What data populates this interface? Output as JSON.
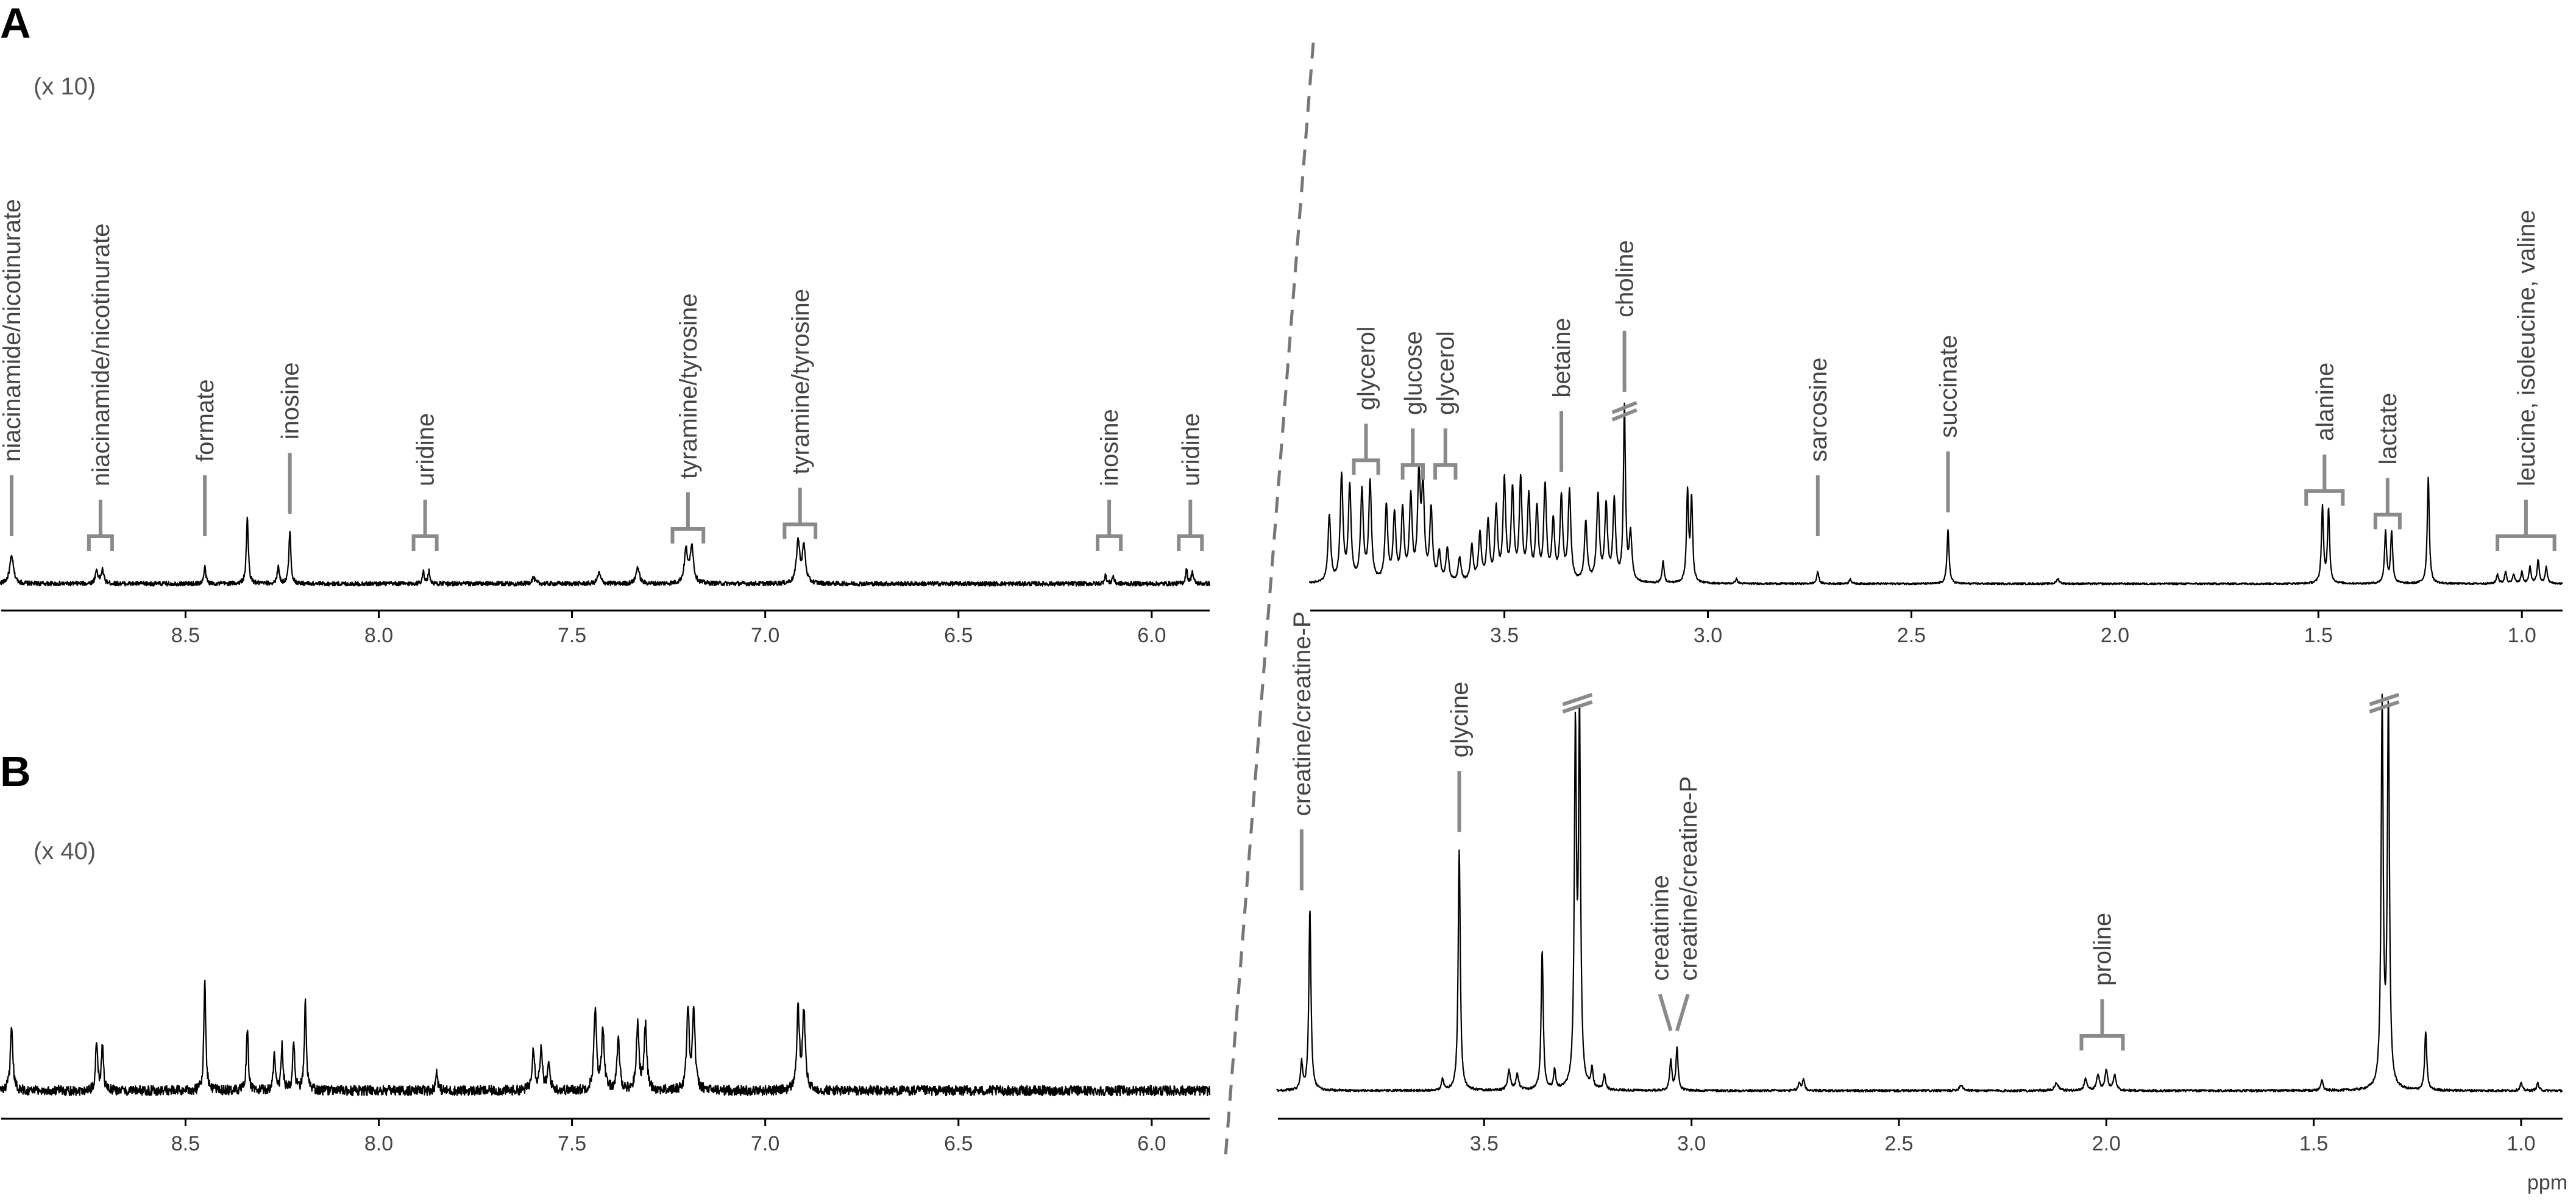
{
  "figure": {
    "unit_label": "ppm"
  },
  "chart_data": [
    {
      "id": "A-aromatic",
      "panel": "A",
      "type": "line",
      "scale_label": "(x 10)",
      "xlabel": "",
      "ylabel": "",
      "xlim": [
        8.98,
        5.85
      ],
      "ylim": [
        0,
        1
      ],
      "x_reversed": true,
      "grid": false,
      "tick_labels": [
        {
          "x": 8.5,
          "label": "8.5"
        },
        {
          "x": 8.0,
          "label": "8.0"
        },
        {
          "x": 7.5,
          "label": "7.5"
        },
        {
          "x": 7.0,
          "label": "7.0"
        },
        {
          "x": 6.5,
          "label": "6.5"
        },
        {
          "x": 6.0,
          "label": "6.0"
        }
      ],
      "baseline_noise": 0.015,
      "peaks": [
        {
          "x": 8.95,
          "h": 0.18,
          "w": 0.006
        },
        {
          "x": 8.715,
          "h": 0.09,
          "w": 0.004
        },
        {
          "x": 8.73,
          "h": 0.09,
          "w": 0.004
        },
        {
          "x": 8.45,
          "h": 0.11,
          "w": 0.003
        },
        {
          "x": 8.34,
          "h": 0.44,
          "w": 0.003
        },
        {
          "x": 8.26,
          "h": 0.12,
          "w": 0.003
        },
        {
          "x": 8.23,
          "h": 0.35,
          "w": 0.003
        },
        {
          "x": 7.885,
          "h": 0.08,
          "w": 0.003
        },
        {
          "x": 7.87,
          "h": 0.08,
          "w": 0.003
        },
        {
          "x": 7.6,
          "h": 0.04,
          "w": 0.005
        },
        {
          "x": 7.43,
          "h": 0.07,
          "w": 0.005
        },
        {
          "x": 7.33,
          "h": 0.11,
          "w": 0.005
        },
        {
          "x": 7.205,
          "h": 0.22,
          "w": 0.005
        },
        {
          "x": 7.19,
          "h": 0.25,
          "w": 0.005
        },
        {
          "x": 6.915,
          "h": 0.28,
          "w": 0.005
        },
        {
          "x": 6.9,
          "h": 0.24,
          "w": 0.005
        },
        {
          "x": 6.12,
          "h": 0.06,
          "w": 0.003
        },
        {
          "x": 6.1,
          "h": 0.05,
          "w": 0.003
        },
        {
          "x": 5.91,
          "h": 0.09,
          "w": 0.003
        },
        {
          "x": 5.895,
          "h": 0.08,
          "w": 0.003
        }
      ],
      "annotations": [
        {
          "label": "niacinamide/nicotinurate",
          "x": 8.95,
          "kind": "tick"
        },
        {
          "label": "niacinamide/nicotinurate",
          "x": 8.72,
          "kind": "bracket",
          "x1": 8.75,
          "x2": 8.69
        },
        {
          "label": "formate",
          "x": 8.45,
          "kind": "line"
        },
        {
          "label": "inosine",
          "x": 8.23,
          "kind": "line"
        },
        {
          "label": "uridine",
          "x": 7.88,
          "kind": "bracket",
          "x1": 7.91,
          "x2": 7.85
        },
        {
          "label": "tyramine/tyrosine",
          "x": 7.2,
          "kind": "bracket",
          "x1": 7.24,
          "x2": 7.16
        },
        {
          "label": "tyramine/tyrosine",
          "x": 6.91,
          "kind": "bracket",
          "x1": 6.95,
          "x2": 6.87
        },
        {
          "label": "inosine",
          "x": 6.11,
          "kind": "bracket",
          "x1": 6.14,
          "x2": 6.08
        },
        {
          "label": "uridine",
          "x": 5.9,
          "kind": "bracket",
          "x1": 5.93,
          "x2": 5.87
        }
      ]
    },
    {
      "id": "A-aliphatic",
      "panel": "A",
      "type": "line",
      "xlabel": "",
      "ylabel": "",
      "xlim": [
        3.98,
        0.9
      ],
      "ylim": [
        0,
        1
      ],
      "x_reversed": true,
      "grid": false,
      "tick_labels": [
        {
          "x": 3.5,
          "label": "3.5"
        },
        {
          "x": 3.0,
          "label": "3.0"
        },
        {
          "x": 2.5,
          "label": "2.5"
        },
        {
          "x": 2.0,
          "label": "2.0"
        },
        {
          "x": 1.5,
          "label": "1.5"
        },
        {
          "x": 1.0,
          "label": "1.0"
        }
      ],
      "baseline_noise": 0.004,
      "peaks": [
        {
          "x": 3.93,
          "h": 0.28,
          "w": 0.004
        },
        {
          "x": 3.9,
          "h": 0.45,
          "w": 0.004
        },
        {
          "x": 3.88,
          "h": 0.4,
          "w": 0.004
        },
        {
          "x": 3.85,
          "h": 0.38,
          "w": 0.004
        },
        {
          "x": 3.83,
          "h": 0.42,
          "w": 0.004
        },
        {
          "x": 3.79,
          "h": 0.32,
          "w": 0.004
        },
        {
          "x": 3.77,
          "h": 0.28,
          "w": 0.004
        },
        {
          "x": 3.75,
          "h": 0.3,
          "w": 0.004
        },
        {
          "x": 3.73,
          "h": 0.35,
          "w": 0.004
        },
        {
          "x": 3.71,
          "h": 0.43,
          "w": 0.004
        },
        {
          "x": 3.7,
          "h": 0.38,
          "w": 0.004
        },
        {
          "x": 3.68,
          "h": 0.3,
          "w": 0.004
        },
        {
          "x": 3.66,
          "h": 0.12,
          "w": 0.004
        },
        {
          "x": 3.64,
          "h": 0.14,
          "w": 0.004
        },
        {
          "x": 3.61,
          "h": 0.1,
          "w": 0.004
        },
        {
          "x": 3.58,
          "h": 0.15,
          "w": 0.004
        },
        {
          "x": 3.56,
          "h": 0.2,
          "w": 0.004
        },
        {
          "x": 3.54,
          "h": 0.25,
          "w": 0.004
        },
        {
          "x": 3.52,
          "h": 0.3,
          "w": 0.004
        },
        {
          "x": 3.5,
          "h": 0.42,
          "w": 0.004
        },
        {
          "x": 3.48,
          "h": 0.38,
          "w": 0.004
        },
        {
          "x": 3.46,
          "h": 0.42,
          "w": 0.004
        },
        {
          "x": 3.44,
          "h": 0.35,
          "w": 0.004
        },
        {
          "x": 3.42,
          "h": 0.3,
          "w": 0.004
        },
        {
          "x": 3.4,
          "h": 0.4,
          "w": 0.004
        },
        {
          "x": 3.38,
          "h": 0.25,
          "w": 0.004
        },
        {
          "x": 3.36,
          "h": 0.35,
          "w": 0.004
        },
        {
          "x": 3.34,
          "h": 0.38,
          "w": 0.004
        },
        {
          "x": 3.3,
          "h": 0.25,
          "w": 0.004
        },
        {
          "x": 3.27,
          "h": 0.36,
          "w": 0.004
        },
        {
          "x": 3.25,
          "h": 0.32,
          "w": 0.004
        },
        {
          "x": 3.23,
          "h": 0.34,
          "w": 0.004
        },
        {
          "x": 3.205,
          "h": 0.74,
          "w": 0.003
        },
        {
          "x": 3.19,
          "h": 0.2,
          "w": 0.004
        },
        {
          "x": 3.11,
          "h": 0.09,
          "w": 0.003
        },
        {
          "x": 3.05,
          "h": 0.38,
          "w": 0.003
        },
        {
          "x": 3.04,
          "h": 0.35,
          "w": 0.003
        },
        {
          "x": 2.93,
          "h": 0.02,
          "w": 0.003
        },
        {
          "x": 2.73,
          "h": 0.05,
          "w": 0.003
        },
        {
          "x": 2.65,
          "h": 0.02,
          "w": 0.003
        },
        {
          "x": 2.41,
          "h": 0.23,
          "w": 0.003
        },
        {
          "x": 2.14,
          "h": 0.02,
          "w": 0.004
        },
        {
          "x": 1.49,
          "h": 0.32,
          "w": 0.003
        },
        {
          "x": 1.475,
          "h": 0.31,
          "w": 0.003
        },
        {
          "x": 1.335,
          "h": 0.22,
          "w": 0.003
        },
        {
          "x": 1.32,
          "h": 0.22,
          "w": 0.003
        },
        {
          "x": 1.23,
          "h": 0.45,
          "w": 0.003
        },
        {
          "x": 1.06,
          "h": 0.04,
          "w": 0.003
        },
        {
          "x": 1.04,
          "h": 0.05,
          "w": 0.003
        },
        {
          "x": 1.02,
          "h": 0.04,
          "w": 0.003
        },
        {
          "x": 1.0,
          "h": 0.05,
          "w": 0.003
        },
        {
          "x": 0.98,
          "h": 0.07,
          "w": 0.003
        },
        {
          "x": 0.96,
          "h": 0.1,
          "w": 0.003
        },
        {
          "x": 0.94,
          "h": 0.07,
          "w": 0.003
        }
      ],
      "annotations": [
        {
          "label": "glycerol",
          "x": 3.84,
          "kind": "bracket",
          "x1": 3.87,
          "x2": 3.81
        },
        {
          "label": "glucose",
          "x": 3.725,
          "kind": "bracket",
          "x1": 3.75,
          "x2": 3.7
        },
        {
          "label": "glycerol",
          "x": 3.645,
          "kind": "bracket",
          "x1": 3.67,
          "x2": 3.62
        },
        {
          "label": "betaine",
          "x": 3.36,
          "kind": "line"
        },
        {
          "label": "choline",
          "x": 3.205,
          "kind": "line-break"
        },
        {
          "label": "sarcosine",
          "x": 2.73,
          "kind": "line"
        },
        {
          "label": "succinate",
          "x": 2.41,
          "kind": "line"
        },
        {
          "label": "alanine",
          "x": 1.485,
          "kind": "bracket",
          "x1": 1.53,
          "x2": 1.44
        },
        {
          "label": "lactate",
          "x": 1.33,
          "kind": "bracket",
          "x1": 1.36,
          "x2": 1.3
        },
        {
          "label": "leucine, isoleucine, valine",
          "x": 0.99,
          "kind": "bracket",
          "x1": 1.06,
          "x2": 0.92
        }
      ]
    },
    {
      "id": "B-aromatic",
      "panel": "B",
      "type": "line",
      "scale_label": "(x 40)",
      "xlabel": "",
      "ylabel": "",
      "xlim": [
        8.98,
        5.85
      ],
      "ylim": [
        0,
        1
      ],
      "x_reversed": true,
      "grid": false,
      "tick_labels": [
        {
          "x": 8.5,
          "label": "8.5"
        },
        {
          "x": 8.0,
          "label": "8.0"
        },
        {
          "x": 7.5,
          "label": "7.5"
        },
        {
          "x": 7.0,
          "label": "7.0"
        },
        {
          "x": 6.5,
          "label": "6.5"
        },
        {
          "x": 6.0,
          "label": "6.0"
        }
      ],
      "baseline_noise": 0.02,
      "peaks": [
        {
          "x": 8.95,
          "h": 0.24,
          "w": 0.004
        },
        {
          "x": 8.73,
          "h": 0.2,
          "w": 0.003
        },
        {
          "x": 8.715,
          "h": 0.19,
          "w": 0.003
        },
        {
          "x": 8.45,
          "h": 0.44,
          "w": 0.003
        },
        {
          "x": 8.34,
          "h": 0.25,
          "w": 0.003
        },
        {
          "x": 8.27,
          "h": 0.15,
          "w": 0.003
        },
        {
          "x": 8.25,
          "h": 0.18,
          "w": 0.003
        },
        {
          "x": 8.22,
          "h": 0.2,
          "w": 0.003
        },
        {
          "x": 8.19,
          "h": 0.35,
          "w": 0.003
        },
        {
          "x": 7.85,
          "h": 0.08,
          "w": 0.003
        },
        {
          "x": 7.6,
          "h": 0.17,
          "w": 0.004
        },
        {
          "x": 7.58,
          "h": 0.16,
          "w": 0.004
        },
        {
          "x": 7.56,
          "h": 0.1,
          "w": 0.004
        },
        {
          "x": 7.44,
          "h": 0.32,
          "w": 0.004
        },
        {
          "x": 7.42,
          "h": 0.25,
          "w": 0.004
        },
        {
          "x": 7.38,
          "h": 0.2,
          "w": 0.004
        },
        {
          "x": 7.33,
          "h": 0.27,
          "w": 0.004
        },
        {
          "x": 7.31,
          "h": 0.26,
          "w": 0.004
        },
        {
          "x": 7.2,
          "h": 0.32,
          "w": 0.004
        },
        {
          "x": 7.185,
          "h": 0.32,
          "w": 0.004
        },
        {
          "x": 6.915,
          "h": 0.32,
          "w": 0.004
        },
        {
          "x": 6.9,
          "h": 0.32,
          "w": 0.004
        }
      ],
      "annotations": []
    },
    {
      "id": "B-aliphatic",
      "panel": "B",
      "type": "line",
      "xlabel": "ppm",
      "ylabel": "",
      "xlim": [
        4.0,
        0.9
      ],
      "ylim": [
        0,
        1
      ],
      "x_reversed": true,
      "grid": false,
      "tick_labels": [
        {
          "x": 3.5,
          "label": "3.5"
        },
        {
          "x": 3.0,
          "label": "3.0"
        },
        {
          "x": 2.5,
          "label": "2.5"
        },
        {
          "x": 2.0,
          "label": "2.0"
        },
        {
          "x": 1.5,
          "label": "1.5"
        },
        {
          "x": 1.0,
          "label": "1.0"
        }
      ],
      "baseline_noise": 0.003,
      "peaks": [
        {
          "x": 3.94,
          "h": 0.07,
          "w": 0.003
        },
        {
          "x": 3.92,
          "h": 0.47,
          "w": 0.003
        },
        {
          "x": 3.6,
          "h": 0.03,
          "w": 0.003
        },
        {
          "x": 3.56,
          "h": 0.62,
          "w": 0.003
        },
        {
          "x": 3.44,
          "h": 0.05,
          "w": 0.004
        },
        {
          "x": 3.42,
          "h": 0.04,
          "w": 0.004
        },
        {
          "x": 3.36,
          "h": 0.36,
          "w": 0.003
        },
        {
          "x": 3.33,
          "h": 0.05,
          "w": 0.003
        },
        {
          "x": 3.28,
          "h": 0.9,
          "w": 0.003
        },
        {
          "x": 3.27,
          "h": 0.93,
          "w": 0.003
        },
        {
          "x": 3.24,
          "h": 0.05,
          "w": 0.003
        },
        {
          "x": 3.21,
          "h": 0.04,
          "w": 0.003
        },
        {
          "x": 3.05,
          "h": 0.08,
          "w": 0.003
        },
        {
          "x": 3.035,
          "h": 0.11,
          "w": 0.003
        },
        {
          "x": 2.74,
          "h": 0.02,
          "w": 0.003
        },
        {
          "x": 2.73,
          "h": 0.03,
          "w": 0.003
        },
        {
          "x": 2.35,
          "h": 0.015,
          "w": 0.005
        },
        {
          "x": 2.12,
          "h": 0.02,
          "w": 0.005
        },
        {
          "x": 2.05,
          "h": 0.03,
          "w": 0.004
        },
        {
          "x": 2.02,
          "h": 0.04,
          "w": 0.004
        },
        {
          "x": 2.0,
          "h": 0.05,
          "w": 0.004
        },
        {
          "x": 1.98,
          "h": 0.04,
          "w": 0.004
        },
        {
          "x": 1.48,
          "h": 0.03,
          "w": 0.003
        },
        {
          "x": 1.335,
          "h": 0.98,
          "w": 0.003
        },
        {
          "x": 1.32,
          "h": 0.98,
          "w": 0.003
        },
        {
          "x": 1.23,
          "h": 0.15,
          "w": 0.003
        },
        {
          "x": 1.0,
          "h": 0.02,
          "w": 0.003
        },
        {
          "x": 0.96,
          "h": 0.02,
          "w": 0.003
        }
      ],
      "annotations": [
        {
          "label": "creatine/creatine-P",
          "x": 3.94,
          "kind": "line"
        },
        {
          "label": "glycine",
          "x": 3.56,
          "kind": "line"
        },
        {
          "label": "creatinine",
          "x": 3.05,
          "kind": "line-diag"
        },
        {
          "label": "creatine/creatine-P",
          "x": 3.035,
          "kind": "line-diag-right"
        },
        {
          "label": "proline",
          "x": 2.01,
          "kind": "bracket",
          "x1": 2.06,
          "x2": 1.96
        }
      ]
    }
  ]
}
